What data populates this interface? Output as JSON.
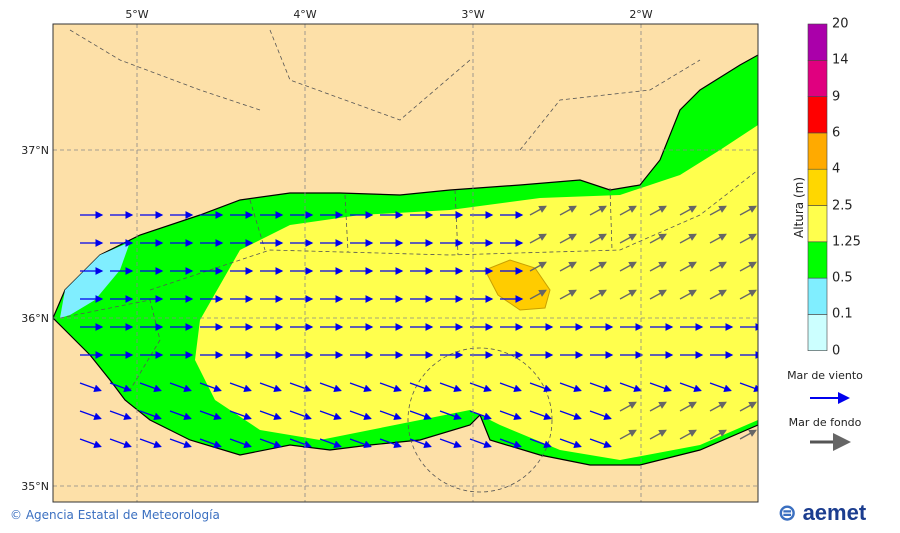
{
  "map": {
    "longitude_labels": [
      "5°W",
      "4°W",
      "3°W",
      "2°W"
    ],
    "latitude_labels": [
      "37°N",
      "36°N",
      "35°N"
    ],
    "land_color": "#fde0a8",
    "swell_high_area_color": "#ffd400"
  },
  "colorbar": {
    "title": "Altura (m)",
    "levels": [
      "0",
      "0.1",
      "0.5",
      "1.25",
      "2.5",
      "4",
      "6",
      "9",
      "14",
      "20"
    ],
    "colors": [
      "#ccffff",
      "#80eeff",
      "#00ff00",
      "#ffff4d",
      "#ffd700",
      "#ffaa00",
      "#ff0000",
      "#e0007f",
      "#aa00aa"
    ]
  },
  "legend": {
    "wind_sea_label": "Mar de viento",
    "wind_sea_color": "#0000ee",
    "swell_label": "Mar de fondo",
    "swell_color": "#555555"
  },
  "footer": {
    "copyright": "© Agencia Estatal de Meteorología",
    "logo": "aemet"
  }
}
